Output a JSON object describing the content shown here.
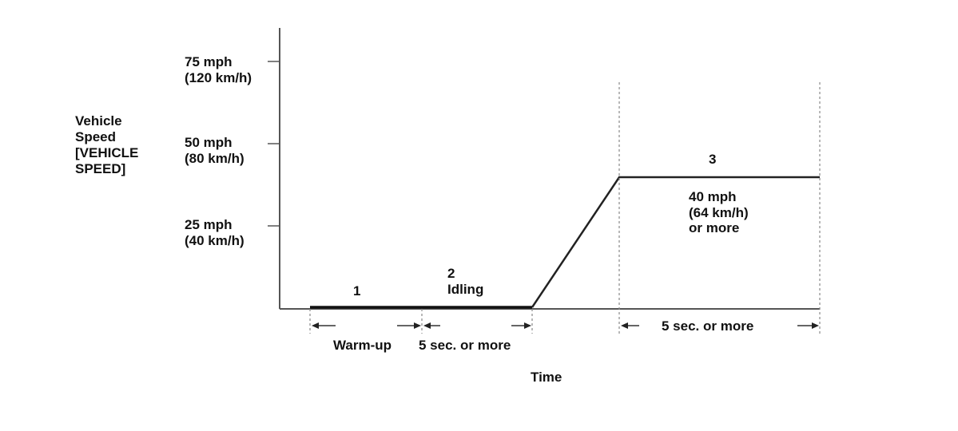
{
  "y_axis": {
    "label_lines": [
      "Vehicle",
      "Speed",
      "[VEHICLE",
      "SPEED]"
    ],
    "ticks": [
      {
        "line1": "75 mph",
        "line2": "(120 km/h)"
      },
      {
        "line1": "50 mph",
        "line2": "(80 km/h)"
      },
      {
        "line1": "25 mph",
        "line2": "(40 km/h)"
      }
    ]
  },
  "x_axis": {
    "label": "Time"
  },
  "phases": [
    {
      "number": "1",
      "label": "",
      "duration": "Warm-up"
    },
    {
      "number": "2",
      "label": "Idling",
      "duration": "5 sec. or more"
    },
    {
      "number": "3",
      "label_lines": [
        "40 mph",
        "(64 km/h)",
        "or more"
      ],
      "duration": "5 sec. or more"
    }
  ],
  "colors": {
    "line": "#222222",
    "axis": "#555555",
    "guide": "#888888"
  }
}
